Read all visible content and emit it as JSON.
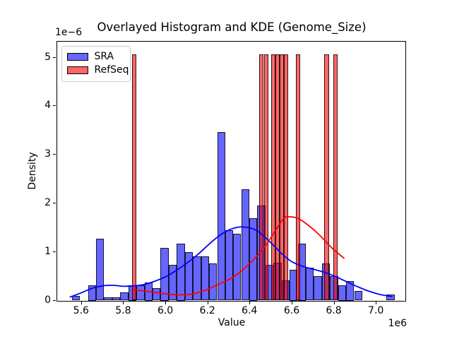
{
  "figure": {
    "title": "Overlayed Histogram and KDE (Genome_Size)",
    "xlabel": "Value",
    "ylabel": "Density",
    "x_offset_text": "1e6",
    "y_offset_text": "1e−6"
  },
  "legend": {
    "items": [
      {
        "label": "SRA",
        "color": "#0000ff"
      },
      {
        "label": "RefSeq",
        "color": "#ff0000"
      }
    ]
  },
  "chart_data": {
    "type": "histogram+kde-overlay",
    "title": "Overlayed Histogram and KDE (Genome_Size)",
    "xlabel": "Value",
    "ylabel": "Density",
    "x_scale": "1e6",
    "y_scale": "1e-6",
    "xlim": [
      5.4833,
      7.1367
    ],
    "ylim": [
      0,
      5.334
    ],
    "grid": false,
    "legend_position": "upper left",
    "x_ticks": [
      {
        "value": 5.6,
        "label": "5.6"
      },
      {
        "value": 5.8,
        "label": "5.8"
      },
      {
        "value": 6.0,
        "label": "6.0"
      },
      {
        "value": 6.2,
        "label": "6.2"
      },
      {
        "value": 6.4,
        "label": "6.4"
      },
      {
        "value": 6.6,
        "label": "6.6"
      },
      {
        "value": 6.8,
        "label": "6.8"
      },
      {
        "value": 7.0,
        "label": "7.0"
      }
    ],
    "y_ticks": [
      {
        "value": 0,
        "label": "0"
      },
      {
        "value": 1,
        "label": "1"
      },
      {
        "value": 2,
        "label": "2"
      },
      {
        "value": 3,
        "label": "3"
      },
      {
        "value": 4,
        "label": "4"
      },
      {
        "value": 5,
        "label": "5"
      }
    ],
    "series": [
      {
        "name": "SRA",
        "type": "histogram",
        "color": "#0000ff",
        "fill_alpha": 0.6,
        "bin_width": 0.0383,
        "bars": [
          [
            5.572,
            0.1
          ],
          [
            5.649,
            0.32
          ],
          [
            5.687,
            1.27
          ],
          [
            5.725,
            0.07
          ],
          [
            5.764,
            0.07
          ],
          [
            5.802,
            0.17
          ],
          [
            5.84,
            0.32
          ],
          [
            5.879,
            0.31
          ],
          [
            5.917,
            0.37
          ],
          [
            5.955,
            0.26
          ],
          [
            5.993,
            1.09
          ],
          [
            6.032,
            0.74
          ],
          [
            6.07,
            1.17
          ],
          [
            6.108,
            0.99
          ],
          [
            6.147,
            0.91
          ],
          [
            6.185,
            0.91
          ],
          [
            6.223,
            0.76
          ],
          [
            6.262,
            3.47
          ],
          [
            6.3,
            1.44
          ],
          [
            6.338,
            1.38
          ],
          [
            6.377,
            2.29
          ],
          [
            6.415,
            1.7
          ],
          [
            6.453,
            1.96
          ],
          [
            6.491,
            0.74
          ],
          [
            6.53,
            0.78
          ],
          [
            6.568,
            0.42
          ],
          [
            6.606,
            0.64
          ],
          [
            6.645,
            1.17
          ],
          [
            6.683,
            0.67
          ],
          [
            6.721,
            0.5
          ],
          [
            6.759,
            0.76
          ],
          [
            6.798,
            0.5
          ],
          [
            6.836,
            0.32
          ],
          [
            6.874,
            0.4
          ],
          [
            6.913,
            0.19
          ],
          [
            7.066,
            0.12
          ]
        ]
      },
      {
        "name": "RefSeq",
        "type": "histogram",
        "color": "#ff0000",
        "fill_alpha": 0.6,
        "bin_width": 0.021,
        "bars": [
          [
            5.85,
            5.06
          ],
          [
            6.453,
            5.06
          ],
          [
            6.476,
            5.06
          ],
          [
            6.51,
            5.06
          ],
          [
            6.53,
            5.06
          ],
          [
            6.551,
            5.06
          ],
          [
            6.571,
            5.06
          ],
          [
            6.628,
            5.06
          ],
          [
            6.763,
            5.06
          ],
          [
            6.805,
            5.06
          ]
        ]
      },
      {
        "name": "SRA KDE",
        "type": "line",
        "color": "#0000ff",
        "points": [
          [
            5.545,
            0.08
          ],
          [
            5.6,
            0.17
          ],
          [
            5.65,
            0.26
          ],
          [
            5.7,
            0.31
          ],
          [
            5.75,
            0.32
          ],
          [
            5.8,
            0.3
          ],
          [
            5.85,
            0.31
          ],
          [
            5.9,
            0.34
          ],
          [
            5.95,
            0.41
          ],
          [
            6.0,
            0.5
          ],
          [
            6.05,
            0.63
          ],
          [
            6.1,
            0.78
          ],
          [
            6.15,
            0.95
          ],
          [
            6.2,
            1.15
          ],
          [
            6.25,
            1.33
          ],
          [
            6.3,
            1.46
          ],
          [
            6.35,
            1.52
          ],
          [
            6.4,
            1.5
          ],
          [
            6.44,
            1.42
          ],
          [
            6.48,
            1.27
          ],
          [
            6.52,
            1.1
          ],
          [
            6.56,
            0.93
          ],
          [
            6.6,
            0.8
          ],
          [
            6.65,
            0.71
          ],
          [
            6.7,
            0.65
          ],
          [
            6.75,
            0.59
          ],
          [
            6.8,
            0.51
          ],
          [
            6.85,
            0.41
          ],
          [
            6.9,
            0.31
          ],
          [
            6.95,
            0.22
          ],
          [
            7.0,
            0.15
          ],
          [
            7.04,
            0.11
          ],
          [
            7.073,
            0.09
          ]
        ]
      },
      {
        "name": "RefSeq KDE",
        "type": "line",
        "color": "#ff0000",
        "points": [
          [
            5.847,
            0.23
          ],
          [
            5.9,
            0.2
          ],
          [
            5.97,
            0.16
          ],
          [
            6.05,
            0.125
          ],
          [
            6.12,
            0.14
          ],
          [
            6.18,
            0.21
          ],
          [
            6.26,
            0.36
          ],
          [
            6.33,
            0.52
          ],
          [
            6.4,
            0.78
          ],
          [
            6.47,
            1.12
          ],
          [
            6.52,
            1.45
          ],
          [
            6.56,
            1.7
          ],
          [
            6.59,
            1.73
          ],
          [
            6.63,
            1.69
          ],
          [
            6.68,
            1.54
          ],
          [
            6.73,
            1.35
          ],
          [
            6.79,
            1.08
          ],
          [
            6.845,
            0.88
          ]
        ]
      }
    ]
  }
}
